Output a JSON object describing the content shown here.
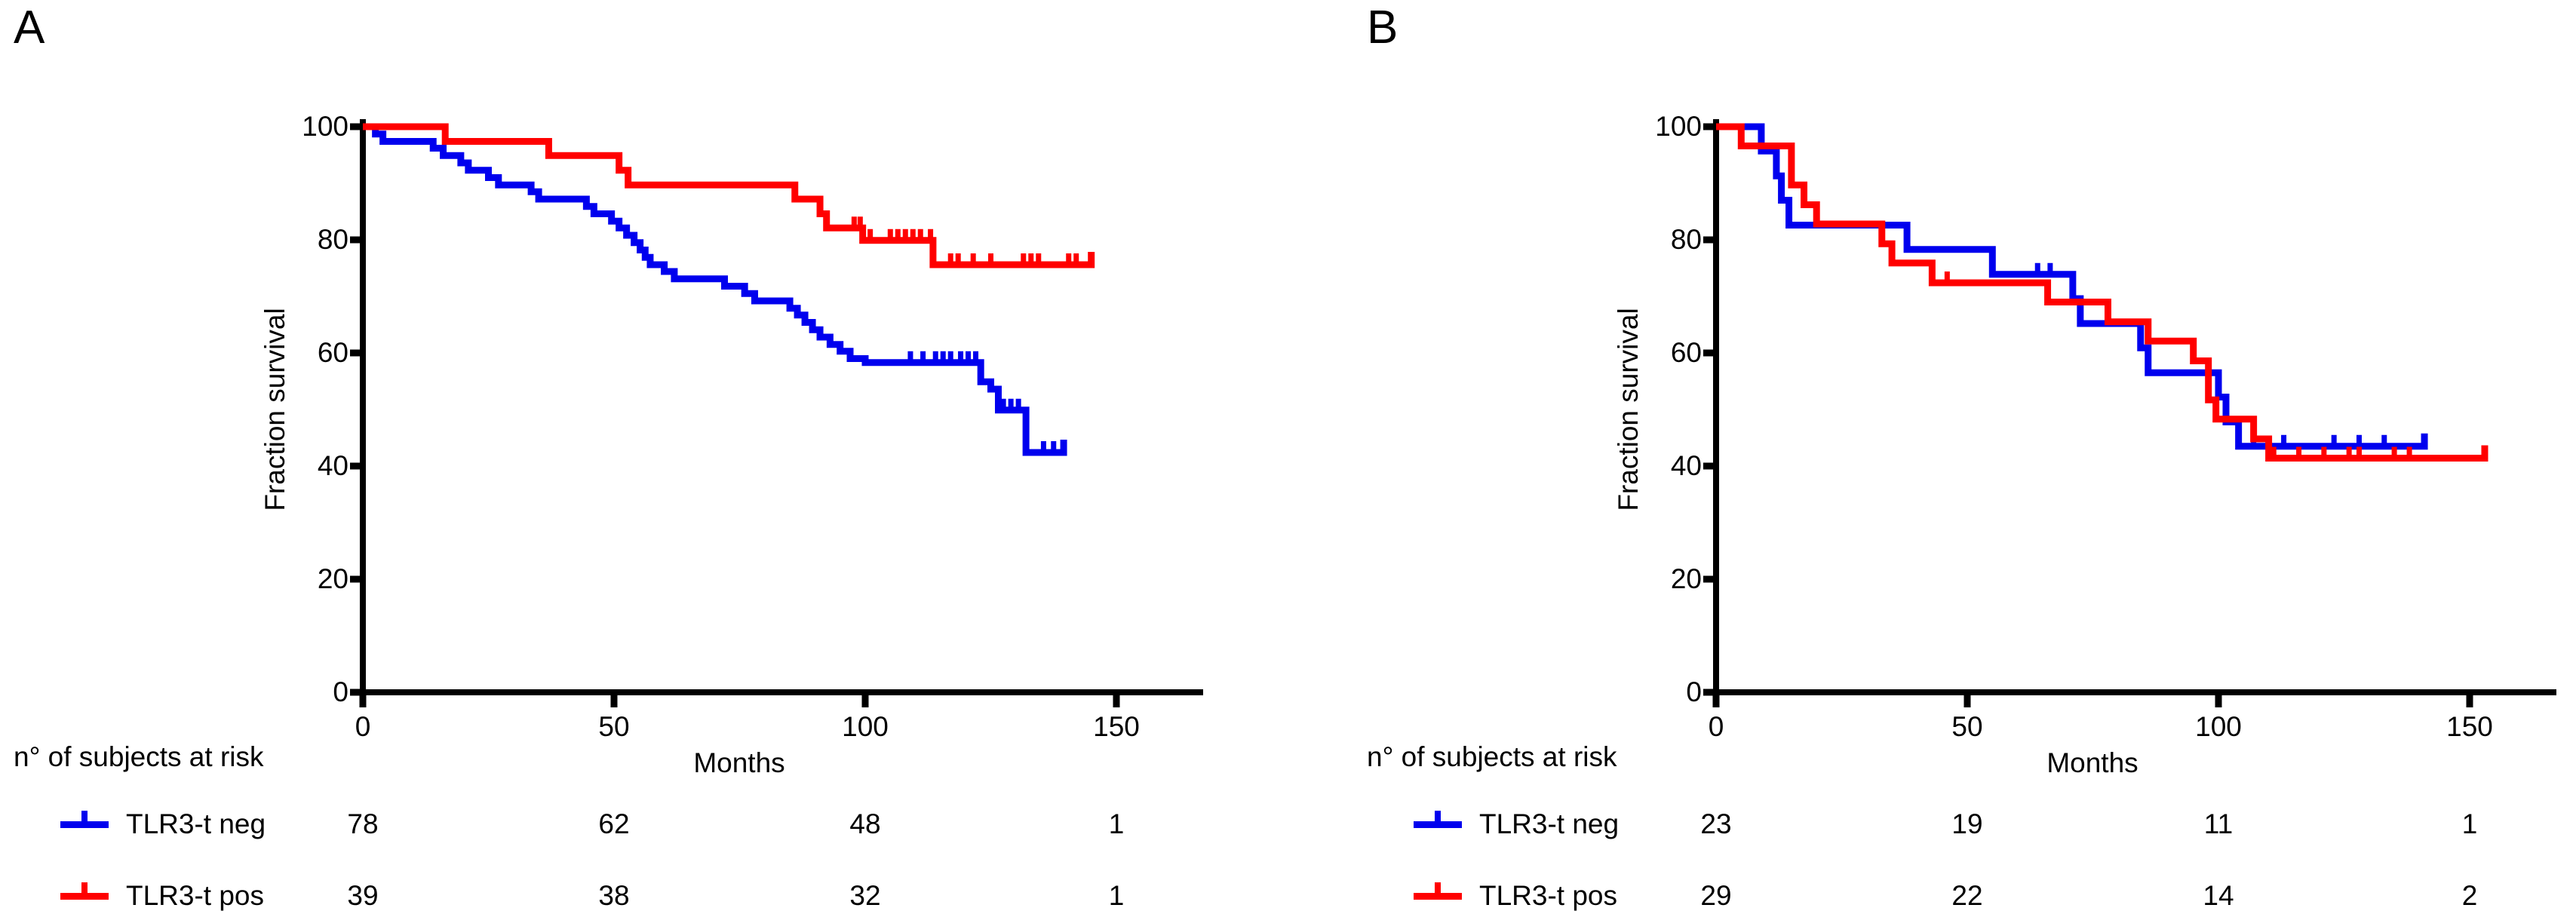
{
  "colors": {
    "axis": "#000000",
    "neg": "#0000EE",
    "pos": "#FF0000"
  },
  "chart_data": [
    {
      "type": "line",
      "subtype": "kaplan-meier-step",
      "panel_label": "A",
      "xlabel": "Months",
      "ylabel": "Fraction survival",
      "x_ticks": [
        0,
        50,
        100,
        150
      ],
      "y_ticks": [
        100,
        80,
        60,
        40,
        20,
        0
      ],
      "xlim": [
        0,
        167
      ],
      "ylim": [
        0,
        100
      ],
      "grid": false,
      "legend_position": "below-left",
      "at_risk": {
        "header": "n° of subjects at risk",
        "rows": [
          {
            "label": "TLR3-t neg",
            "color": "#0000EE",
            "counts": [
              78,
              62,
              48,
              1
            ]
          },
          {
            "label": "TLR3-t pos",
            "color": "#FF0000",
            "counts": [
              39,
              38,
              32,
              1
            ]
          }
        ]
      },
      "series": [
        {
          "name": "TLR3-t neg",
          "color": "#0000EE",
          "steps": [
            [
              0,
              100
            ],
            [
              2.5,
              98.7
            ],
            [
              4,
              97.4
            ],
            [
              14,
              96.2
            ],
            [
              16,
              94.9
            ],
            [
              19.5,
              93.6
            ],
            [
              21,
              92.3
            ],
            [
              25,
              91.0
            ],
            [
              27,
              89.7
            ],
            [
              33.5,
              88.5
            ],
            [
              35,
              87.2
            ],
            [
              44.5,
              85.9
            ],
            [
              46,
              84.6
            ],
            [
              49.5,
              83.3
            ],
            [
              51,
              82.1
            ],
            [
              52.5,
              80.8
            ],
            [
              54,
              79.5
            ],
            [
              55.2,
              78.2
            ],
            [
              56.2,
              76.9
            ],
            [
              57.2,
              75.6
            ],
            [
              60,
              74.4
            ],
            [
              62,
              73.1
            ],
            [
              72,
              71.8
            ],
            [
              76,
              70.5
            ],
            [
              78,
              69.2
            ],
            [
              85,
              67.9
            ],
            [
              86.5,
              66.7
            ],
            [
              88,
              65.4
            ],
            [
              89.5,
              64.1
            ],
            [
              91,
              62.8
            ],
            [
              93,
              61.5
            ],
            [
              95,
              60.3
            ],
            [
              97,
              59.0
            ],
            [
              100,
              58.3
            ],
            [
              123,
              54.9
            ],
            [
              125,
              53.6
            ],
            [
              126.5,
              49.9
            ],
            [
              132,
              42.4
            ]
          ],
          "end_time": 139.5,
          "end_tick": true,
          "censors": [
            [
              109,
              58.3
            ],
            [
              111.5,
              58.3
            ],
            [
              114,
              58.3
            ],
            [
              115.5,
              58.3
            ],
            [
              117,
              58.3
            ],
            [
              119,
              58.3
            ],
            [
              120.5,
              58.3
            ],
            [
              122,
              58.3
            ],
            [
              127.5,
              49.9
            ],
            [
              129,
              49.9
            ],
            [
              130.5,
              49.9
            ],
            [
              135.5,
              42.4
            ],
            [
              137.5,
              42.4
            ]
          ]
        },
        {
          "name": "TLR3-t pos",
          "color": "#FF0000",
          "steps": [
            [
              0,
              100
            ],
            [
              16.4,
              97.4
            ],
            [
              37,
              94.9
            ],
            [
              51,
              92.3
            ],
            [
              52.8,
              89.7
            ],
            [
              86,
              87.2
            ],
            [
              91,
              84.6
            ],
            [
              92.3,
              82.1
            ],
            [
              99.5,
              79.9
            ],
            [
              113.5,
              75.6
            ]
          ],
          "end_time": 145,
          "end_tick": true,
          "censors": [
            [
              97.8,
              82.1
            ],
            [
              99,
              82.1
            ],
            [
              101,
              79.9
            ],
            [
              105,
              79.9
            ],
            [
              106.5,
              79.9
            ],
            [
              108,
              79.9
            ],
            [
              109.5,
              79.9
            ],
            [
              111,
              79.9
            ],
            [
              113,
              79.9
            ],
            [
              117,
              75.6
            ],
            [
              118.5,
              75.6
            ],
            [
              121.5,
              75.6
            ],
            [
              125,
              75.6
            ],
            [
              131.5,
              75.6
            ],
            [
              133,
              75.6
            ],
            [
              134.5,
              75.6
            ],
            [
              140.5,
              75.6
            ],
            [
              142,
              75.6
            ]
          ]
        }
      ]
    },
    {
      "type": "line",
      "subtype": "kaplan-meier-step",
      "panel_label": "B",
      "xlabel": "Months",
      "ylabel": "Fraction survival",
      "x_ticks": [
        0,
        50,
        100,
        150
      ],
      "y_ticks": [
        100,
        80,
        60,
        40,
        20,
        0
      ],
      "xlim": [
        0,
        167
      ],
      "ylim": [
        0,
        100
      ],
      "grid": false,
      "legend_position": "below-left",
      "at_risk": {
        "header": "n° of subjects at risk",
        "rows": [
          {
            "label": "TLR3-t neg",
            "color": "#0000EE",
            "counts": [
              23,
              19,
              11,
              1
            ]
          },
          {
            "label": "TLR3-t pos",
            "color": "#FF0000",
            "counts": [
              29,
              22,
              14,
              2
            ]
          }
        ]
      },
      "series": [
        {
          "name": "TLR3-t neg",
          "color": "#0000EE",
          "steps": [
            [
              0,
              100
            ],
            [
              9,
              95.7
            ],
            [
              12,
              91.3
            ],
            [
              13,
              87.0
            ],
            [
              14.5,
              82.6
            ],
            [
              38,
              78.3
            ],
            [
              55,
              73.9
            ],
            [
              71,
              69.6
            ],
            [
              72.5,
              65.2
            ],
            [
              84.5,
              60.9
            ],
            [
              86,
              56.5
            ],
            [
              100,
              52.2
            ],
            [
              101.5,
              47.8
            ],
            [
              104,
              43.5
            ]
          ],
          "end_time": 141,
          "end_tick": true,
          "censors": [
            [
              64,
              73.9
            ],
            [
              66.5,
              73.9
            ],
            [
              107,
              43.5
            ],
            [
              113,
              43.5
            ],
            [
              123,
              43.5
            ],
            [
              128,
              43.5
            ],
            [
              133,
              43.5
            ]
          ]
        },
        {
          "name": "TLR3-t pos",
          "color": "#FF0000",
          "steps": [
            [
              0,
              100
            ],
            [
              5,
              96.6
            ],
            [
              15,
              89.7
            ],
            [
              17.5,
              86.2
            ],
            [
              20,
              82.8
            ],
            [
              33,
              79.3
            ],
            [
              35,
              75.9
            ],
            [
              43,
              72.4
            ],
            [
              66,
              69.0
            ],
            [
              78,
              65.5
            ],
            [
              86,
              62.1
            ],
            [
              95,
              58.6
            ],
            [
              98,
              51.7
            ],
            [
              99.5,
              48.3
            ],
            [
              107,
              44.8
            ],
            [
              110,
              41.4
            ]
          ],
          "end_time": 153,
          "end_tick": true,
          "censors": [
            [
              46,
              72.4
            ],
            [
              111,
              41.4
            ],
            [
              116,
              41.4
            ],
            [
              121,
              41.4
            ],
            [
              126,
              41.4
            ],
            [
              128,
              41.4
            ],
            [
              135,
              41.4
            ],
            [
              138,
              41.4
            ]
          ]
        }
      ]
    }
  ]
}
